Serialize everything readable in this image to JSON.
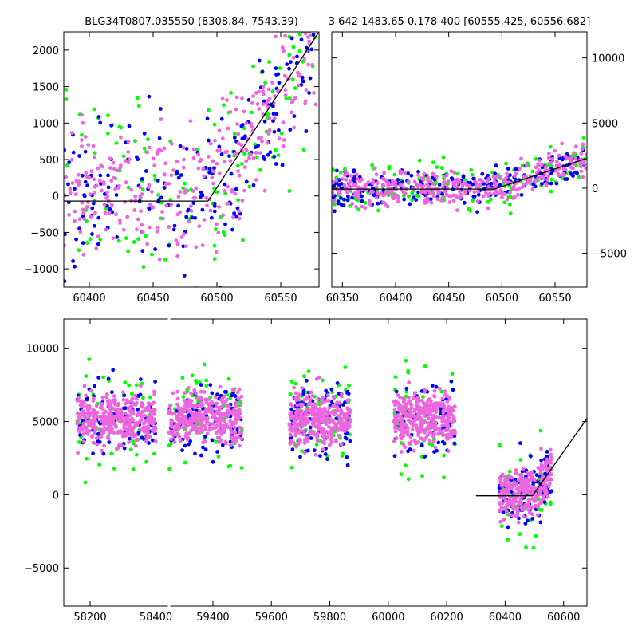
{
  "chart_data": [
    {
      "type": "scatter",
      "title": "BLG34T0807.035550 (8308.84, 7543.39)",
      "xlim": [
        60380,
        60580
      ],
      "ylim": [
        -1250,
        2250
      ],
      "xticks": [
        60400,
        60450,
        60500,
        60550
      ],
      "yticks": [
        -1000,
        -500,
        0,
        500,
        1000,
        1500,
        2000
      ],
      "ytick_side": "left",
      "model_line": {
        "x": [
          60380,
          60493,
          60580
        ],
        "y": [
          -70,
          -70,
          2250
        ]
      },
      "series": [
        {
          "color": "#00ff00",
          "count": 130,
          "scatter_base": 250,
          "scatter_spread": 600
        },
        {
          "color": "#0000ff",
          "count": 200,
          "scatter_base": 200,
          "scatter_spread": 550
        },
        {
          "color": "#ee66dd",
          "count": 320,
          "scatter_base": 100,
          "scatter_spread": 450
        }
      ]
    },
    {
      "type": "scatter",
      "title": "3 642 1483.65 0.178 400 [60555.425, 60556.682]",
      "xlim": [
        60340,
        60580
      ],
      "ylim": [
        -7600,
        12000
      ],
      "xticks": [
        60350,
        60400,
        60450,
        60500,
        60550
      ],
      "yticks": [
        -5000,
        0,
        5000,
        10000
      ],
      "ytick_side": "right",
      "model_line": {
        "x": [
          60340,
          60493,
          60580
        ],
        "y": [
          -70,
          -70,
          2300
        ]
      },
      "series": [
        {
          "color": "#00ff00",
          "count": 150,
          "scatter_base": 200,
          "scatter_spread": 900
        },
        {
          "color": "#0000ff",
          "count": 220,
          "scatter_base": 100,
          "scatter_spread": 700
        },
        {
          "color": "#ee66dd",
          "count": 360,
          "scatter_base": 0,
          "scatter_spread": 650
        }
      ]
    },
    {
      "type": "scatter",
      "title": "",
      "xlim": [
        58120,
        60680
      ],
      "ylim": [
        -7600,
        12000
      ],
      "x_broken": true,
      "xticks": [
        58200,
        58400,
        59400,
        59600,
        59800,
        60000,
        60200,
        60400,
        60600
      ],
      "yticks": [
        -5000,
        0,
        5000,
        10000
      ],
      "ytick_side": "left",
      "seasons": [
        {
          "x_start": 58160,
          "x_end": 58400
        },
        {
          "x_start": 59250,
          "x_end": 59500
        },
        {
          "x_start": 59660,
          "x_end": 59870
        },
        {
          "x_start": 60020,
          "x_end": 60230
        },
        {
          "x_start": 60380,
          "x_end": 60560
        }
      ],
      "model_line": {
        "x": [
          60300,
          60493,
          60680
        ],
        "y": [
          -70,
          -70,
          5200
        ]
      },
      "series": [
        {
          "color": "#00ff00",
          "count": 300,
          "scatter_base": 400,
          "scatter_spread": 1800
        },
        {
          "color": "#0000ff",
          "count": 450,
          "scatter_base": 100,
          "scatter_spread": 1200
        },
        {
          "color": "#ee66dd",
          "count": 1600,
          "scatter_base": 0,
          "scatter_spread": 800
        }
      ]
    }
  ]
}
